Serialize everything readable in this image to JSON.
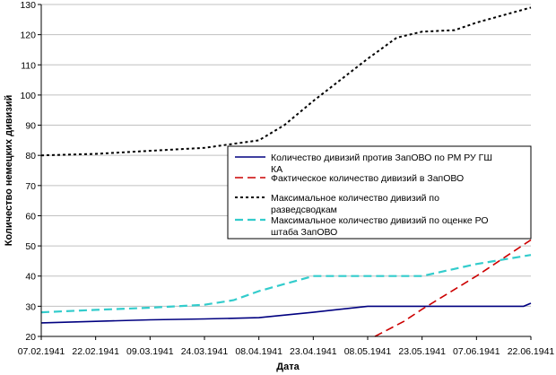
{
  "chart_data": {
    "type": "line",
    "xlabel": "Дата",
    "ylabel": "Количество немецких дивизий",
    "ylim": [
      20,
      130
    ],
    "yticks": [
      20,
      30,
      40,
      50,
      60,
      70,
      80,
      90,
      100,
      110,
      120,
      130
    ],
    "xlim": [
      "07.02.1941",
      "22.06.1941"
    ],
    "xticks": [
      "07.02.1941",
      "22.02.1941",
      "09.03.1941",
      "24.03.1941",
      "08.04.1941",
      "23.04.1941",
      "08.05.1941",
      "23.05.1941",
      "07.06.1941",
      "22.06.1941"
    ],
    "grid": "horizontal",
    "legend": "right-middle",
    "series": [
      {
        "name": "Количество дивизий против ЗапОВО по РМ РУ ГШ КА",
        "color": "#000080",
        "style": "solid",
        "points": [
          [
            "07.02.1941",
            24.5
          ],
          [
            "22.02.1941",
            25
          ],
          [
            "09.03.1941",
            25.5
          ],
          [
            "24.03.1941",
            25.8
          ],
          [
            "08.04.1941",
            26.2
          ],
          [
            "23.04.1941",
            28
          ],
          [
            "08.05.1941",
            30
          ],
          [
            "23.05.1941",
            30
          ],
          [
            "07.06.1941",
            30
          ],
          [
            "20.06.1941",
            30
          ],
          [
            "22.06.1941",
            31
          ]
        ]
      },
      {
        "name": "Фактическое количество дивизий в ЗапОВО",
        "color": "#cc0000",
        "style": "dashed",
        "points": [
          [
            "10.05.1941",
            20
          ],
          [
            "18.05.1941",
            25
          ],
          [
            "23.05.1941",
            29
          ],
          [
            "07.06.1941",
            40
          ],
          [
            "22.06.1941",
            52
          ]
        ]
      },
      {
        "name": "Максимальное количество дивизий по разведсводкам",
        "color": "#000000",
        "style": "dotted",
        "points": [
          [
            "07.02.1941",
            80
          ],
          [
            "22.02.1941",
            80.5
          ],
          [
            "09.03.1941",
            81.5
          ],
          [
            "24.03.1941",
            82.5
          ],
          [
            "08.04.1941",
            85
          ],
          [
            "15.04.1941",
            90
          ],
          [
            "23.04.1941",
            98
          ],
          [
            "08.05.1941",
            112
          ],
          [
            "16.05.1941",
            119
          ],
          [
            "23.05.1941",
            121
          ],
          [
            "01.06.1941",
            121.5
          ],
          [
            "07.06.1941",
            124
          ],
          [
            "22.06.1941",
            129
          ]
        ]
      },
      {
        "name": "Максимальное количество дивизий по оценке РО штаба ЗапОВО",
        "color": "#33cccc",
        "style": "dashed",
        "points": [
          [
            "07.02.1941",
            28
          ],
          [
            "22.02.1941",
            28.8
          ],
          [
            "09.03.1941",
            29.5
          ],
          [
            "24.03.1941",
            30.5
          ],
          [
            "01.04.1941",
            32
          ],
          [
            "08.04.1941",
            35
          ],
          [
            "23.04.1941",
            40
          ],
          [
            "08.05.1941",
            40
          ],
          [
            "23.05.1941",
            40
          ],
          [
            "07.06.1941",
            44
          ],
          [
            "22.06.1941",
            47
          ]
        ]
      }
    ]
  }
}
